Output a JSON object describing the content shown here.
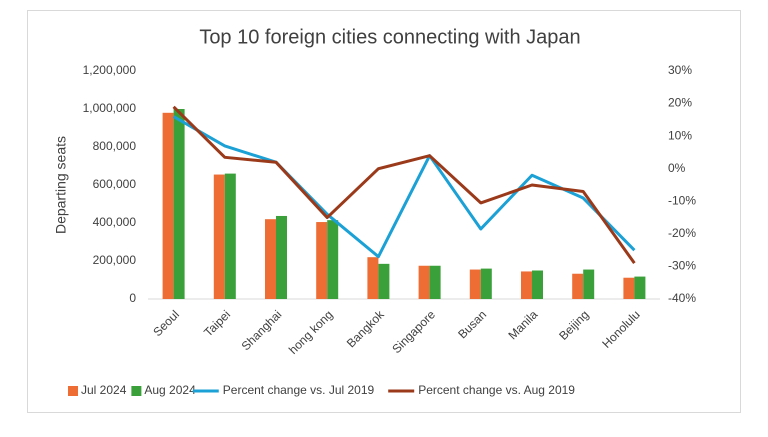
{
  "chart_data": {
    "type": "bar_line",
    "title": "Top 10 foreign cities connecting with Japan",
    "y_label": "Departing seats",
    "categories": [
      "Seoul",
      "Taipei",
      "Shanghai",
      "hong kong",
      "Bangkok",
      "Singapore",
      "Busan",
      "Manila",
      "Beijing",
      "Honolulu"
    ],
    "series": [
      {
        "name": "Jul 2024",
        "type": "bar",
        "color": "#ed6d35",
        "values": [
          980000,
          655000,
          420000,
          405000,
          220000,
          175000,
          155000,
          145000,
          133000,
          112000
        ]
      },
      {
        "name": "Aug 2024",
        "type": "bar",
        "color": "#3aa13a",
        "values": [
          1000000,
          660000,
          437000,
          415000,
          185000,
          175000,
          160000,
          150000,
          155000,
          118000
        ]
      },
      {
        "name": "Percent change vs. Jul 2019",
        "type": "line",
        "axis": "y2",
        "color": "#1ba1d5",
        "values": [
          16,
          7,
          2,
          -14,
          -27,
          4,
          -18.5,
          -2,
          -9,
          -25
        ]
      },
      {
        "name": "Percent change vs. Aug 2019",
        "type": "line",
        "axis": "y2",
        "color": "#9b3a1a",
        "values": [
          19,
          3.5,
          2,
          -15,
          0,
          4,
          -10.5,
          -5,
          -7,
          -29
        ]
      }
    ],
    "ylim": [
      0,
      1200000
    ],
    "yticks": [
      0,
      {
        "value": 200000,
        "label": "200,000"
      },
      {
        "value": 400000,
        "label": "400,000"
      },
      {
        "value": 600000,
        "label": "600,000"
      },
      {
        "value": 800000,
        "label": "800,000"
      },
      {
        "value": 1000000,
        "label": "1,000,000"
      },
      {
        "value": 1200000,
        "label": "1,200,000"
      }
    ],
    "y2lim": [
      -40,
      30
    ],
    "y2ticks": [
      {
        "value": -40,
        "label": "-40%"
      },
      {
        "value": -30,
        "label": "-30%"
      },
      {
        "value": -20,
        "label": "-20%"
      },
      {
        "value": -10,
        "label": "-10%"
      },
      {
        "value": 0,
        "label": "0%"
      },
      {
        "value": 10,
        "label": "10%"
      },
      {
        "value": 20,
        "label": "20%"
      },
      {
        "value": 30,
        "label": "30%"
      }
    ],
    "grid": false,
    "legend": "bottom"
  }
}
